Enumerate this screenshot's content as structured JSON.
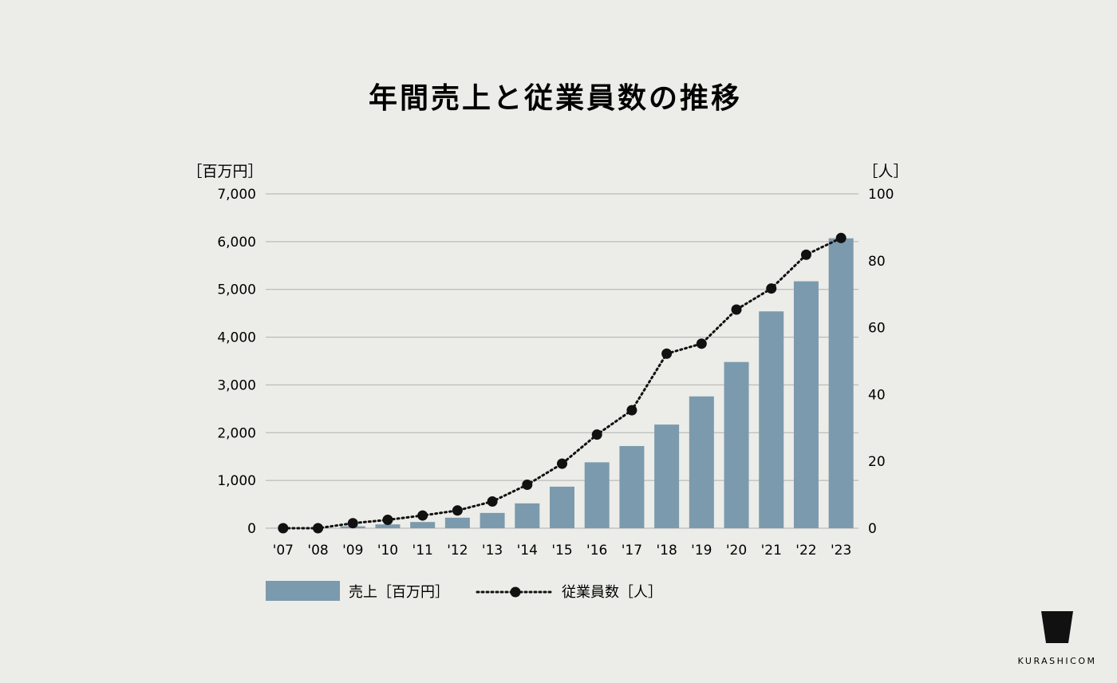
{
  "chart_data": {
    "type": "bar+line",
    "title": "年間売上と従業員数の推移",
    "left_axis": {
      "unit_label": "［百万円］",
      "min": 0,
      "max": 7000,
      "ticks": [
        "0",
        "1,000",
        "2,000",
        "3,000",
        "4,000",
        "5,000",
        "6,000",
        "7,000"
      ]
    },
    "right_axis": {
      "unit_label": "［人］",
      "min": 0,
      "max": 100,
      "ticks": [
        "0",
        "20",
        "40",
        "60",
        "80",
        "100"
      ]
    },
    "categories": [
      "'07",
      "'08",
      "'09",
      "'10",
      "'11",
      "'12",
      "'13",
      "'14",
      "'15",
      "'16",
      "'17",
      "'18",
      "'19",
      "'20",
      "'21",
      "'22",
      "'23"
    ],
    "series": [
      {
        "name": "売上［百万円］",
        "type": "bar",
        "axis": "left",
        "values": [
          5,
          10,
          40,
          80,
          130,
          220,
          320,
          520,
          870,
          1380,
          1720,
          2170,
          2760,
          3480,
          4540,
          5170,
          6070
        ]
      },
      {
        "name": "従業員数［人］",
        "type": "line",
        "style": "dotted",
        "marker": "circle",
        "axis": "right",
        "values": [
          0,
          0,
          1.5,
          2.5,
          3.8,
          5.3,
          8,
          13,
          19.3,
          28,
          35.3,
          52.2,
          55.2,
          65.4,
          71.7,
          81.8,
          86.8
        ]
      }
    ],
    "grid": true,
    "legend": "bottom-left"
  },
  "colors": {
    "background": "#ecece8",
    "bar": "#7b9aad",
    "line": "#111111",
    "grid": "#b0b0ae",
    "text": "#1a1a1a"
  },
  "legend": {
    "bar_label": "売上［百万円］",
    "line_label": "従業員数［人］"
  },
  "brand": {
    "name": "KURASHICOM",
    "icon": "cup-logo-icon"
  }
}
